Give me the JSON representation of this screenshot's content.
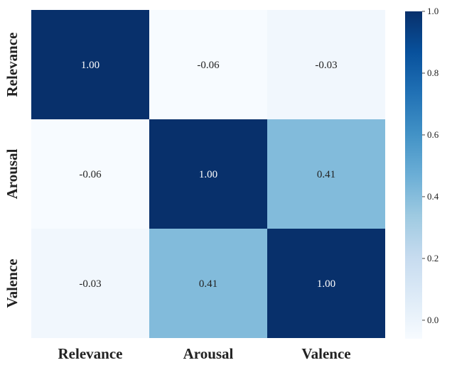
{
  "chart_data": {
    "type": "heatmap",
    "title": "",
    "x_labels": [
      "Relevance",
      "Arousal",
      "Valence"
    ],
    "y_labels": [
      "Relevance",
      "Arousal",
      "Valence"
    ],
    "values": [
      [
        1.0,
        -0.06,
        -0.03
      ],
      [
        -0.06,
        1.0,
        0.41
      ],
      [
        -0.03,
        0.41,
        1.0
      ]
    ],
    "annotations": [
      [
        "1.00",
        "-0.06",
        "-0.03"
      ],
      [
        "-0.06",
        "1.00",
        "0.41"
      ],
      [
        "-0.03",
        "0.41",
        "1.00"
      ]
    ],
    "colormap": "Blues",
    "colorbar": {
      "range": [
        -0.06,
        1.0
      ],
      "ticks": [
        "0.0",
        "0.2",
        "0.4",
        "0.6",
        "0.8",
        "1.0"
      ],
      "placement": "right"
    },
    "grid": false
  }
}
